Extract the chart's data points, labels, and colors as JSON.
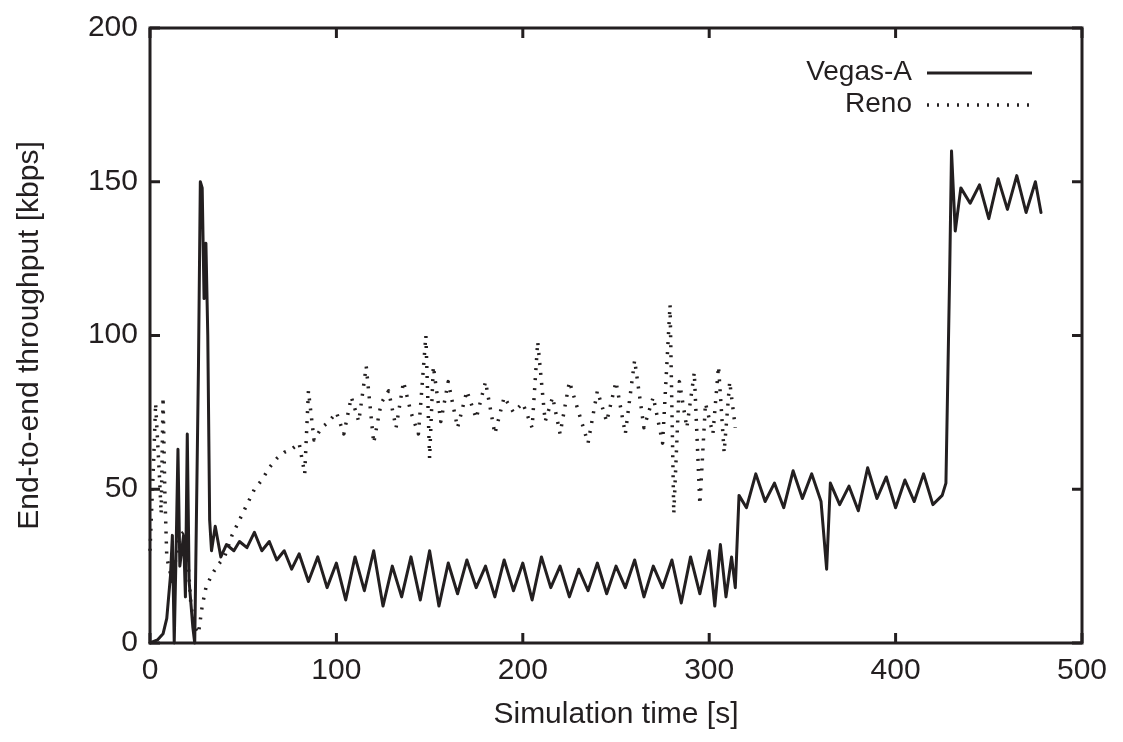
{
  "chart_data": {
    "type": "line",
    "xlabel": "Simulation time [s]",
    "ylabel": "End-to-end throughput [kbps]",
    "xlim": [
      0,
      500
    ],
    "xticks": [
      0,
      100,
      200,
      300,
      400,
      500
    ],
    "ylim": [
      0,
      200
    ],
    "yticks": [
      0,
      50,
      100,
      150,
      200
    ],
    "legend": "top right",
    "series": [
      {
        "name": "Vegas-A",
        "color": "#231f20",
        "line_style": "solid",
        "x": [
          0,
          4,
          7,
          9,
          11,
          12,
          13,
          14,
          15,
          16,
          18,
          19,
          20,
          21,
          23,
          24,
          26,
          27,
          28,
          29,
          30,
          31,
          32,
          33,
          35,
          38,
          41,
          45,
          48,
          52,
          56,
          60,
          64,
          68,
          72,
          76,
          80,
          85,
          90,
          95,
          100,
          105,
          110,
          115,
          120,
          125,
          130,
          135,
          140,
          145,
          150,
          155,
          160,
          165,
          170,
          175,
          180,
          185,
          190,
          195,
          200,
          205,
          210,
          215,
          220,
          225,
          230,
          235,
          240,
          245,
          250,
          255,
          260,
          265,
          270,
          275,
          280,
          285,
          290,
          295,
          300,
          303,
          306,
          309,
          312,
          314,
          316,
          320,
          325,
          330,
          335,
          340,
          345,
          350,
          355,
          360,
          363,
          365,
          370,
          375,
          380,
          385,
          390,
          395,
          400,
          405,
          410,
          415,
          420,
          425,
          427,
          429,
          430,
          432,
          435,
          440,
          445,
          450,
          455,
          460,
          465,
          470,
          475,
          478
        ],
        "values": [
          0,
          1,
          3,
          8,
          22,
          35,
          0,
          30,
          63,
          25,
          35,
          15,
          68,
          20,
          5,
          0,
          90,
          150,
          148,
          112,
          130,
          100,
          40,
          30,
          38,
          28,
          32,
          30,
          33,
          31,
          36,
          30,
          33,
          27,
          30,
          24,
          29,
          20,
          28,
          18,
          26,
          14,
          28,
          17,
          30,
          12,
          25,
          15,
          28,
          14,
          30,
          12,
          26,
          16,
          27,
          18,
          25,
          15,
          27,
          17,
          26,
          14,
          28,
          18,
          25,
          15,
          24,
          17,
          26,
          16,
          25,
          18,
          27,
          15,
          25,
          18,
          27,
          13,
          28,
          16,
          30,
          12,
          32,
          15,
          28,
          18,
          48,
          44,
          55,
          46,
          52,
          44,
          56,
          47,
          55,
          46,
          24,
          52,
          45,
          51,
          43,
          57,
          47,
          54,
          44,
          53,
          46,
          55,
          45,
          48,
          52,
          120,
          160,
          134,
          148,
          143,
          149,
          138,
          151,
          141,
          152,
          140,
          150,
          140
        ]
      },
      {
        "name": "Reno",
        "color": "#231f20",
        "line_style": "dotted",
        "x": [
          0,
          2,
          3,
          5,
          6,
          7,
          8,
          9,
          10,
          12,
          14,
          16,
          18,
          20,
          22,
          24,
          26,
          28,
          30,
          33,
          36,
          40,
          44,
          48,
          52,
          56,
          60,
          64,
          68,
          72,
          76,
          80,
          83,
          85,
          88,
          92,
          96,
          100,
          104,
          108,
          112,
          116,
          120,
          124,
          128,
          132,
          136,
          140,
          144,
          148,
          150,
          152,
          156,
          160,
          165,
          170,
          175,
          180,
          185,
          190,
          195,
          200,
          205,
          208,
          212,
          216,
          220,
          225,
          230,
          235,
          240,
          245,
          250,
          255,
          260,
          265,
          270,
          275,
          279,
          281,
          284,
          288,
          292,
          295,
          298,
          302,
          305,
          308,
          311,
          314
        ],
        "values": [
          30,
          60,
          78,
          55,
          42,
          80,
          48,
          28,
          25,
          20,
          28,
          35,
          36,
          30,
          12,
          5,
          3,
          12,
          18,
          22,
          25,
          28,
          35,
          40,
          45,
          50,
          53,
          57,
          60,
          62,
          63,
          65,
          55,
          82,
          66,
          70,
          72,
          75,
          68,
          80,
          72,
          90,
          65,
          78,
          82,
          70,
          85,
          75,
          68,
          100,
          60,
          90,
          72,
          85,
          70,
          82,
          73,
          85,
          68,
          80,
          75,
          78,
          70,
          98,
          72,
          80,
          68,
          85,
          75,
          65,
          82,
          72,
          85,
          68,
          92,
          70,
          80,
          65,
          110,
          42,
          85,
          70,
          88,
          45,
          78,
          68,
          90,
          62,
          85,
          70
        ]
      }
    ]
  }
}
